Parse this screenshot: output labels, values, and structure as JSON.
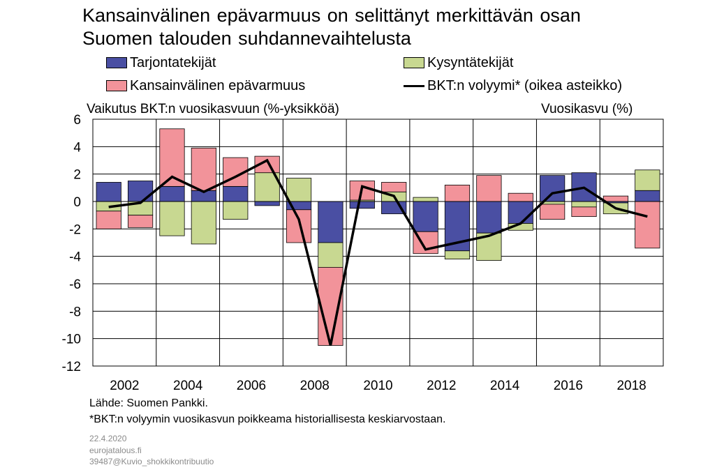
{
  "title": {
    "line1": "Kansainvälinen epävarmuus on selittänyt merkittävän osan",
    "line2": "Suomen talouden suhdannevaihtelusta"
  },
  "legend": {
    "supply": "Tarjontatekijät",
    "demand": "Kysyntätekijät",
    "uncertainty": "Kansainvälinen epävarmuus",
    "gdp": "BKT:n volyymi* (oikea asteikko)"
  },
  "left_axis_title": "Vaikutus BKT:n vuosikasvuun (%-yksikköä)",
  "right_axis_title": "Vuosikasvu (%)",
  "source": "Lähde: Suomen Pankki.",
  "footnote": "*BKT:n volyymin vuosikasvun  poikkeama historiallisesta keskiarvostaan.",
  "meta": {
    "date": "22.4.2020",
    "site": "eurojatalous.fi",
    "id": "39487@Kuvio_shokkikontribuutio"
  },
  "colors": {
    "supply": "#4a4fa3",
    "demand": "#c8d891",
    "uncertainty": "#f2939a",
    "gdp": "#000000"
  },
  "chart_data": {
    "type": "bar",
    "stacked": true,
    "x": [
      2002,
      2003,
      2004,
      2005,
      2006,
      2007,
      2008,
      2009,
      2010,
      2011,
      2012,
      2013,
      2014,
      2015,
      2016,
      2017,
      2018,
      2019
    ],
    "tick_labels": [
      "2002",
      "2004",
      "2006",
      "2008",
      "2010",
      "2012",
      "2014",
      "2016",
      "2018"
    ],
    "ylim": [
      -12,
      6
    ],
    "yticks": [
      6,
      4,
      2,
      0,
      -2,
      -4,
      -6,
      -8,
      -10,
      -12
    ],
    "grid": true,
    "series": [
      {
        "name": "Tarjontatekijät",
        "values": [
          1.4,
          1.5,
          1.1,
          0.8,
          1.1,
          -0.3,
          -0.6,
          -3.0,
          -0.5,
          -0.9,
          -2.2,
          -3.6,
          -2.3,
          -1.6,
          1.9,
          2.1,
          -0.1,
          0.8
        ]
      },
      {
        "name": "Kysyntätekijät",
        "values": [
          -0.7,
          -1.0,
          -2.5,
          -3.1,
          -1.3,
          2.1,
          1.7,
          -1.8,
          0.1,
          0.7,
          0.3,
          -0.6,
          -2.0,
          -0.5,
          -0.2,
          -0.4,
          -0.8,
          1.5
        ]
      },
      {
        "name": "Kansainvälinen epävarmuus",
        "values": [
          -1.3,
          -0.9,
          4.2,
          3.1,
          2.1,
          1.2,
          -2.4,
          -5.7,
          1.4,
          0.7,
          -1.6,
          1.2,
          1.9,
          0.6,
          -1.1,
          -0.7,
          0.4,
          -3.4
        ]
      }
    ],
    "line": {
      "name": "BKT:n volyymi* (oikea asteikko)",
      "values": [
        -0.4,
        -0.1,
        1.8,
        0.7,
        1.8,
        3.0,
        -1.3,
        -10.5,
        1.1,
        0.4,
        -3.5,
        -3.0,
        -2.5,
        -1.6,
        0.6,
        1.0,
        -0.5,
        -1.1
      ]
    }
  }
}
